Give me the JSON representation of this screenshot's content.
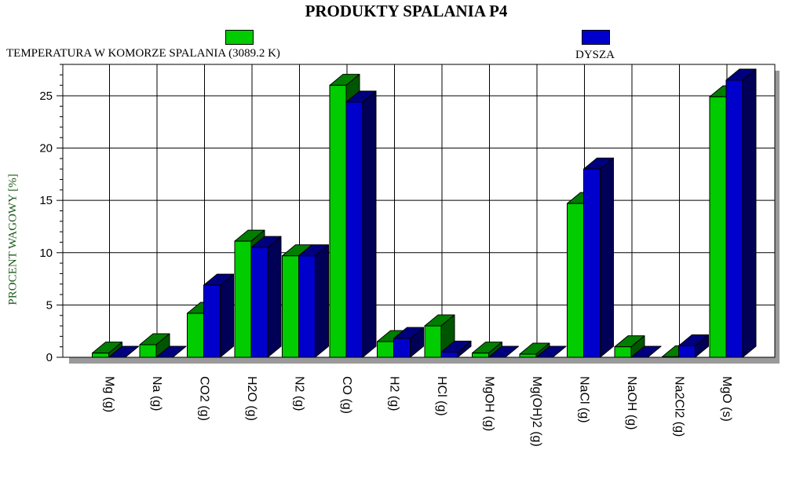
{
  "chart_data": {
    "type": "bar",
    "title": "PRODUKTY SPALANIA P4",
    "ylabel": "PROCENT WAGOWY [%]",
    "xlabel": "",
    "ylim": [
      0,
      28
    ],
    "yticks": [
      0,
      5,
      10,
      15,
      20,
      25
    ],
    "grid": true,
    "categories": [
      "Mg (g)",
      "Na (g)",
      "CO2 (g)",
      "H2O (g)",
      "N2 (g)",
      "CO (g)",
      "H2 (g)",
      "HCl (g)",
      "MgOH (g)",
      "Mg(OH)2 (g)",
      "NaCl (g)",
      "NaOH (g)",
      "Na2Cl2 (g)",
      "MgO (s)"
    ],
    "series": [
      {
        "name": "TEMPERATURA W KOMORZE SPALANIA",
        "annotation": "(3089.2 K)",
        "color": "#00cc00",
        "values": [
          0.4,
          1.2,
          4.2,
          11.1,
          9.7,
          26.0,
          1.5,
          3.0,
          0.4,
          0.3,
          14.7,
          1.0,
          0.05,
          24.9
        ]
      },
      {
        "name": "DYSZA",
        "color": "#0000cc",
        "values": [
          0.0,
          0.0,
          6.9,
          10.5,
          9.7,
          24.4,
          1.8,
          0.5,
          0.0,
          0.0,
          18.0,
          0.0,
          1.1,
          26.5
        ]
      }
    ]
  }
}
